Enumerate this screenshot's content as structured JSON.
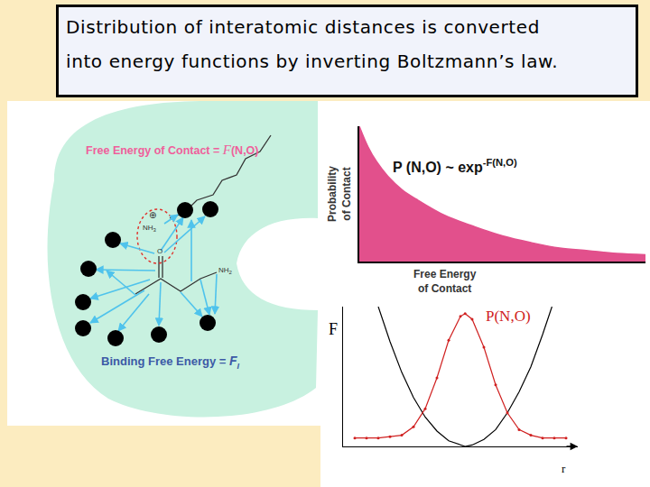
{
  "slide": {
    "title_lines": [
      "Distribution of interatomic distances is converted",
      "into energy functions by inverting Boltzmann’s law."
    ]
  },
  "diagram": {
    "contact_label": [
      "Free Energy of Contact = ",
      "F",
      "(N,O)"
    ],
    "binding_label": [
      "Binding Free Energy = ",
      "F",
      "I"
    ],
    "charged_group": [
      "NH",
      "3"
    ],
    "charge": "⊕",
    "oxygen": "O",
    "amine": [
      "NH",
      "2"
    ]
  },
  "chart_data": [
    {
      "type": "area",
      "xlabel": [
        "Free Energy",
        "of Contact"
      ],
      "ylabel": [
        "Probability",
        "of Contact"
      ],
      "formula": "P (N,O) ~ exp",
      "formula_exponent": "-F(N,O)",
      "x": [
        0,
        0.03,
        0.06,
        0.1,
        0.15,
        0.2,
        0.3,
        0.4,
        0.5,
        0.6,
        0.7,
        0.8,
        0.9,
        1.0
      ],
      "values": [
        1.0,
        0.85,
        0.74,
        0.63,
        0.53,
        0.46,
        0.34,
        0.26,
        0.19,
        0.14,
        0.1,
        0.08,
        0.06,
        0.05
      ],
      "xlim": [
        0,
        1
      ],
      "ylim": [
        0,
        1
      ],
      "color": "#e2508c",
      "grid": false,
      "tick_labels": false
    },
    {
      "type": "line",
      "xlabel": "r",
      "xlim": [
        0,
        1
      ],
      "ylim": [
        0,
        1
      ],
      "grid": false,
      "tick_labels": false,
      "series": [
        {
          "name": "F",
          "color": "#000000",
          "x": [
            0.15,
            0.2,
            0.25,
            0.3,
            0.35,
            0.4,
            0.45,
            0.5,
            0.52,
            0.55,
            0.6,
            0.65,
            0.7,
            0.75,
            0.8,
            0.85,
            0.89
          ],
          "values": [
            1.0,
            0.75,
            0.53,
            0.35,
            0.21,
            0.11,
            0.04,
            0.01,
            0.0,
            0.01,
            0.05,
            0.12,
            0.24,
            0.39,
            0.57,
            0.8,
            1.0
          ]
        },
        {
          "name": "P(N,O)",
          "color": "#d02020",
          "marker": "circle",
          "x": [
            0.05,
            0.1,
            0.15,
            0.2,
            0.25,
            0.3,
            0.35,
            0.4,
            0.45,
            0.5,
            0.52,
            0.55,
            0.6,
            0.65,
            0.7,
            0.75,
            0.8,
            0.85,
            0.9,
            0.95
          ],
          "values": [
            0.06,
            0.06,
            0.06,
            0.07,
            0.08,
            0.14,
            0.27,
            0.49,
            0.76,
            0.93,
            0.95,
            0.91,
            0.71,
            0.44,
            0.24,
            0.12,
            0.08,
            0.06,
            0.06,
            0.06
          ]
        }
      ]
    }
  ]
}
